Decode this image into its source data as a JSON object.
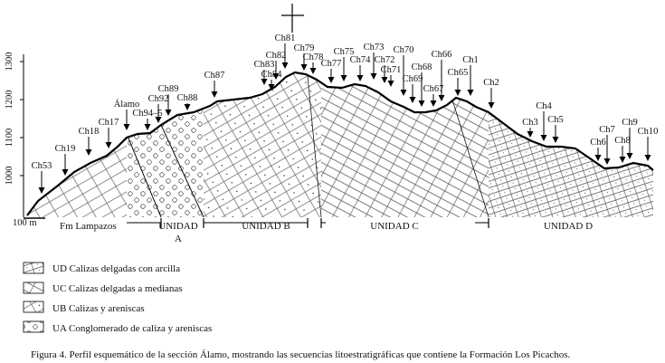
{
  "profile": {
    "y_ticks": [
      "1300",
      "1200",
      "1100",
      "1000"
    ],
    "scale_label": "100 m",
    "samples": [
      "Ch53",
      "Ch19",
      "Ch18",
      "Ch17",
      "Álamo",
      "Ch94–5",
      "Ch92",
      "Ch89",
      "Ch88",
      "Ch87",
      "Ch84",
      "Ch83",
      "Ch82",
      "Ch81",
      "Ch79",
      "Ch78",
      "Ch77",
      "Ch75",
      "Ch74",
      "Ch73",
      "Ch72",
      "Ch71",
      "Ch70",
      "Ch69",
      "Ch68",
      "Ch67",
      "Ch66",
      "Ch65",
      "Ch1",
      "Ch2",
      "Ch3",
      "Ch4",
      "Ch5",
      "Ch6",
      "Ch7",
      "Ch8",
      "Ch9",
      "Ch10"
    ],
    "formation_label": "Fm Lampazos",
    "units": [
      "UNIDAD A",
      "UNIDAD B",
      "UNIDAD C",
      "UNIDAD D"
    ]
  },
  "legend": [
    {
      "code": "UD",
      "text": "UD Calizas delgadas con arcilla"
    },
    {
      "code": "UC",
      "text": "UC Calizas delgadas a medianas"
    },
    {
      "code": "UB",
      "text": "UB Calizas y areniscas"
    },
    {
      "code": "UA",
      "text": "UA Conglomerado de caliza y areniscas"
    }
  ],
  "caption": "Figura 4. Perfil esquemático de la sección Álamo, mostrando las secuencias litoestratigráficas que contiene la Formación Los Picachos."
}
